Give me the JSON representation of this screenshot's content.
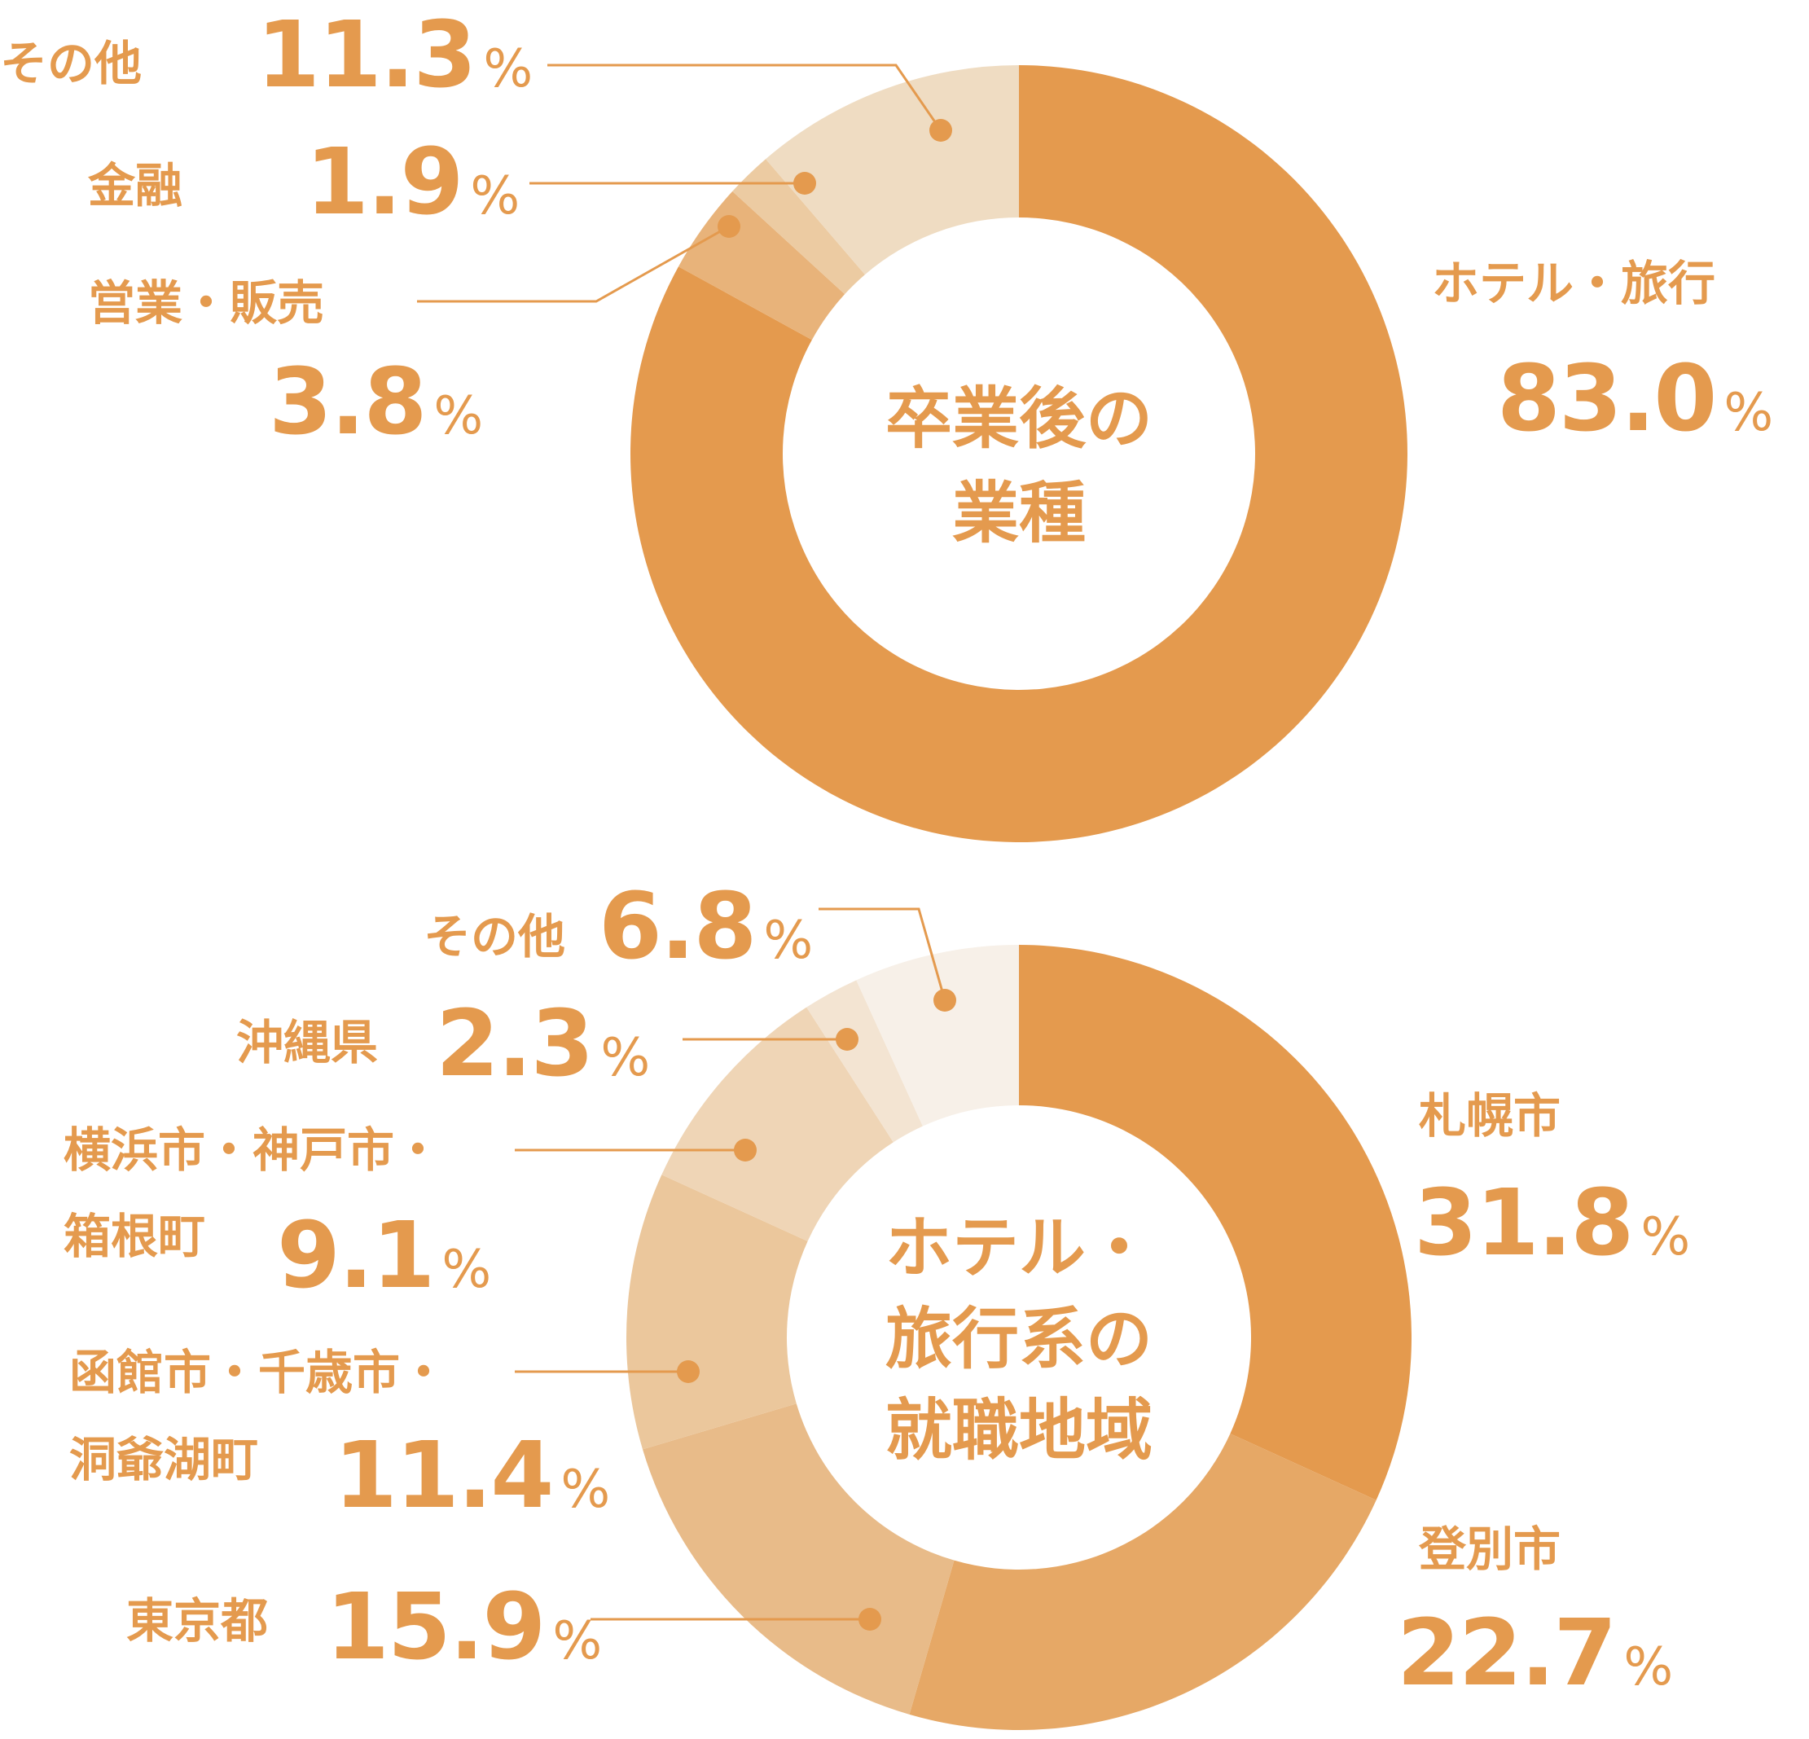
{
  "chart_data": [
    {
      "type": "pie",
      "title": "卒業後の業種",
      "title_lines": [
        "卒業後の",
        "業種"
      ],
      "slices": [
        {
          "label": "ホテル・旅行",
          "value": 83.0,
          "display": "83.0",
          "unit": "%",
          "color": "#e49a4e"
        },
        {
          "label": "営業・販売",
          "value": 3.8,
          "display": "3.8",
          "unit": "%",
          "color": "#e8b37a"
        },
        {
          "label": "金融",
          "value": 1.9,
          "display": "1.9",
          "unit": "%",
          "color": "#eccba2"
        },
        {
          "label": "その他",
          "value": 11.3,
          "display": "11.3",
          "unit": "%",
          "color": "#efdcc2"
        }
      ]
    },
    {
      "type": "pie",
      "title": "ホテル・旅行系の就職地域",
      "title_lines": [
        "ホテル・",
        "旅行系の",
        "就職地域"
      ],
      "slices": [
        {
          "label": "札幌市",
          "value": 31.8,
          "display": "31.8",
          "unit": "%",
          "color": "#e49a4e"
        },
        {
          "label": "登別市",
          "value": 22.7,
          "display": "22.7",
          "unit": "%",
          "color": "#e6a866"
        },
        {
          "label": "東京都",
          "value": 15.9,
          "display": "15.9",
          "unit": "%",
          "color": "#e8bb89"
        },
        {
          "label": "函館市・千歳市・洞爺湖町",
          "label_lines": [
            "函館市・千歳市・",
            "洞爺湖町"
          ],
          "value": 11.4,
          "display": "11.4",
          "unit": "%",
          "color": "#ebc79c"
        },
        {
          "label": "横浜市・神戸市・箱根町",
          "label_lines": [
            "横浜市・神戸市・",
            "箱根町"
          ],
          "value": 9.1,
          "display": "9.1",
          "unit": "%",
          "color": "#efd5b6"
        },
        {
          "label": "沖縄県",
          "value": 2.3,
          "display": "2.3",
          "unit": "%",
          "color": "#f3e4d2"
        },
        {
          "label": "その他",
          "value": 6.8,
          "display": "6.8",
          "unit": "%",
          "color": "#f7f0e8"
        }
      ]
    }
  ]
}
